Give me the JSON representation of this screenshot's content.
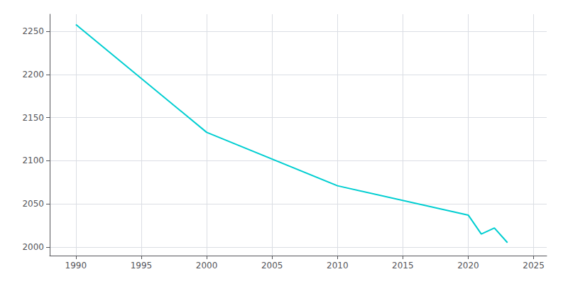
{
  "chart_data": {
    "type": "line",
    "x": [
      1990,
      2000,
      2010,
      2020,
      2021,
      2022,
      2023
    ],
    "values": [
      2258,
      2133,
      2071,
      2037,
      2015,
      2022,
      2005
    ],
    "color": "#00CED1",
    "xlim": [
      1988,
      2026
    ],
    "ylim": [
      1990,
      2270
    ],
    "xticks": [
      1990,
      1995,
      2000,
      2005,
      2010,
      2015,
      2020,
      2025
    ],
    "yticks": [
      2000,
      2050,
      2100,
      2150,
      2200,
      2250
    ],
    "grid": true
  }
}
